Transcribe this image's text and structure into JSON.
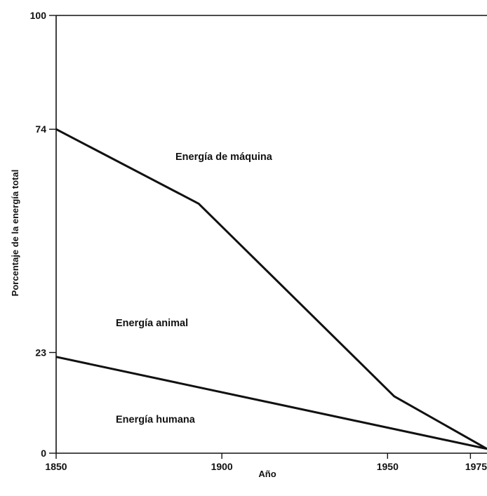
{
  "chart_data": {
    "type": "line",
    "title": "",
    "xlabel": "Año",
    "ylabel": "Porcentaje de la energía total",
    "xlim": [
      1850,
      1980
    ],
    "ylim": [
      0,
      100
    ],
    "x_ticks": [
      1850,
      1900,
      1950,
      1975
    ],
    "y_ticks": [
      0,
      23,
      74,
      100
    ],
    "grid": false,
    "series": [
      {
        "x": [
          1850,
          1893,
          1952,
          1980
        ],
        "y": [
          74,
          57,
          13,
          1
        ]
      },
      {
        "x": [
          1850,
          1980
        ],
        "y": [
          22,
          1
        ]
      }
    ],
    "annotations": [
      {
        "text": "Energía de máquina",
        "x": 1886,
        "y": 67
      },
      {
        "text": "Energía animal",
        "x": 1868,
        "y": 29
      },
      {
        "text": "Energía humana",
        "x": 1868,
        "y": 7
      }
    ]
  }
}
